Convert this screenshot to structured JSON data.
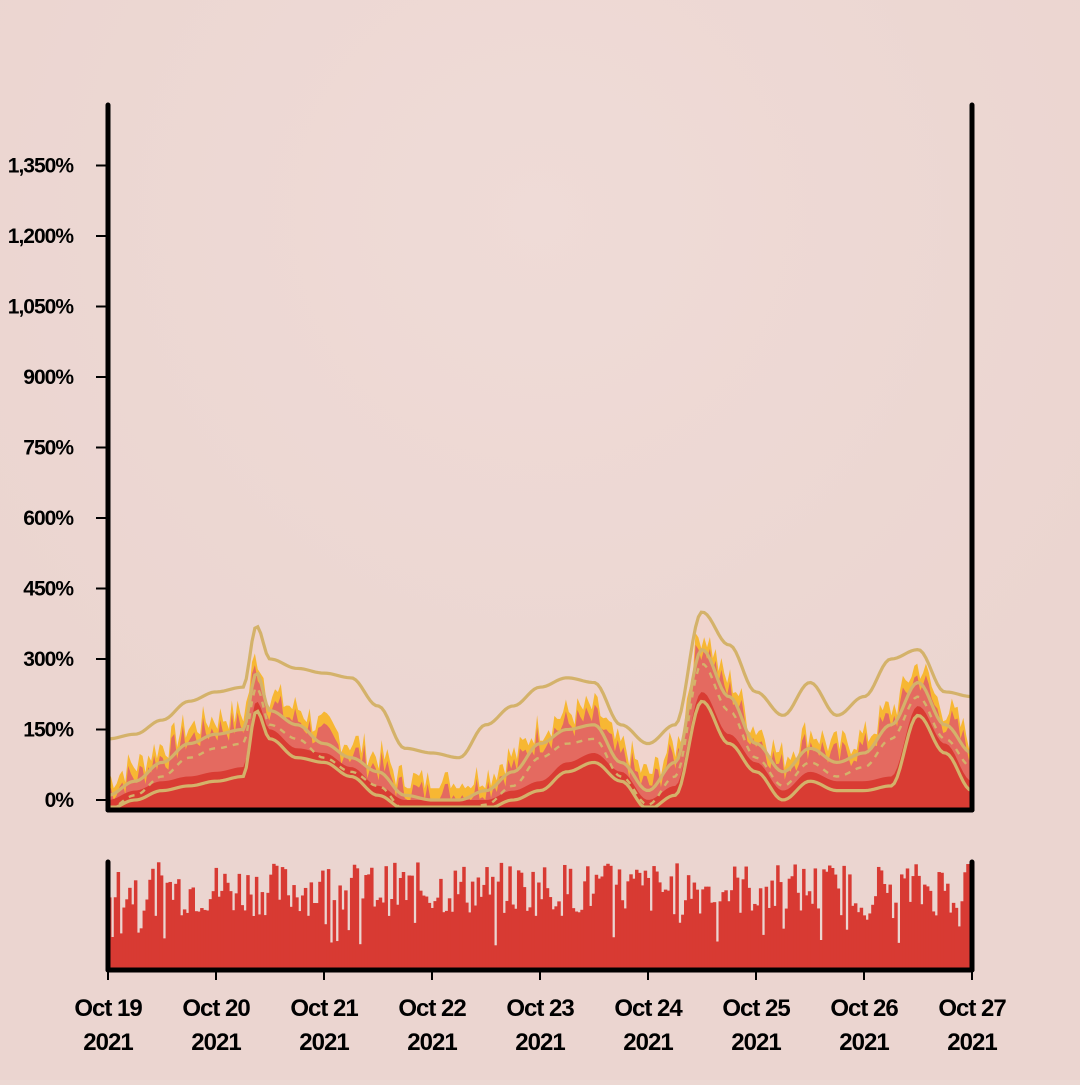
{
  "chart_data": [
    {
      "type": "area",
      "description_shown": false,
      "x_axis": {
        "type": "date",
        "range": [
          "2021-10-19",
          "2021-10-27"
        ],
        "tick_labels": [
          {
            "date": "2021-10-19",
            "line1": "Oct 19",
            "line2": "2021"
          },
          {
            "date": "2021-10-20",
            "line1": "Oct 20",
            "line2": "2021"
          },
          {
            "date": "2021-10-21",
            "line1": "Oct 21",
            "line2": "2021"
          },
          {
            "date": "2021-10-22",
            "line1": "Oct 22",
            "line2": "2021"
          },
          {
            "date": "2021-10-23",
            "line1": "Oct 23",
            "line2": "2021"
          },
          {
            "date": "2021-10-24",
            "line1": "Oct 24",
            "line2": "2021"
          },
          {
            "date": "2021-10-25",
            "line1": "Oct 25",
            "line2": "2021"
          },
          {
            "date": "2021-10-26",
            "line1": "Oct 26",
            "line2": "2021"
          },
          {
            "date": "2021-10-27",
            "line1": "Oct 27",
            "line2": "2021"
          }
        ]
      },
      "y_axis": {
        "unit": "%",
        "ylim": [
          0,
          1450
        ],
        "ticks": [
          0,
          150,
          300,
          450,
          600,
          750,
          900,
          1050,
          1200,
          1350
        ],
        "tick_labels": [
          "0%",
          "150%",
          "300%",
          "450%",
          "600%",
          "750%",
          "900%",
          "1,050%",
          "1,200%",
          "1,350%"
        ]
      },
      "grid": false,
      "series_smooth_anchors": {
        "x": [
          "2021-10-19 00:00",
          "2021-10-19 06:00",
          "2021-10-19 12:00",
          "2021-10-19 18:00",
          "2021-10-20 00:00",
          "2021-10-20 06:00",
          "2021-10-20 09:00",
          "2021-10-20 12:00",
          "2021-10-20 18:00",
          "2021-10-21 00:00",
          "2021-10-21 06:00",
          "2021-10-21 12:00",
          "2021-10-21 18:00",
          "2021-10-22 00:00",
          "2021-10-22 06:00",
          "2021-10-22 12:00",
          "2021-10-22 18:00",
          "2021-10-23 00:00",
          "2021-10-23 06:00",
          "2021-10-23 12:00",
          "2021-10-23 18:00",
          "2021-10-24 00:00",
          "2021-10-24 06:00",
          "2021-10-24 12:00",
          "2021-10-24 18:00",
          "2021-10-25 00:00",
          "2021-10-25 06:00",
          "2021-10-25 12:00",
          "2021-10-25 18:00",
          "2021-10-26 00:00",
          "2021-10-26 06:00",
          "2021-10-26 12:00",
          "2021-10-26 18:00",
          "2021-10-27 00:00"
        ],
        "lower_band": [
          0,
          20,
          40,
          50,
          60,
          70,
          210,
          150,
          110,
          100,
          70,
          30,
          0,
          0,
          0,
          0,
          20,
          40,
          80,
          100,
          60,
          0,
          30,
          230,
          140,
          80,
          20,
          60,
          40,
          40,
          50,
          200,
          120,
          40
        ],
        "core": [
          10,
          40,
          80,
          120,
          140,
          150,
          270,
          190,
          160,
          120,
          90,
          60,
          10,
          0,
          0,
          20,
          60,
          120,
          150,
          160,
          80,
          20,
          80,
          320,
          220,
          120,
          60,
          110,
          80,
          100,
          160,
          250,
          160,
          100
        ],
        "upper_band": [
          130,
          140,
          170,
          210,
          230,
          240,
          370,
          300,
          280,
          270,
          260,
          200,
          110,
          100,
          90,
          160,
          200,
          240,
          260,
          250,
          160,
          120,
          160,
          400,
          330,
          230,
          180,
          250,
          180,
          220,
          300,
          320,
          230,
          220
        ]
      },
      "series_colors": {
        "area_fill": "#d93c33",
        "band_fill": "#e46a60",
        "spike_fill": "#f7b733",
        "band_line": "#d4b26a",
        "background": "#ecd8d3",
        "volume_bars": "#d83a33"
      }
    },
    {
      "type": "bar",
      "panel": "volume",
      "note_values_are_relative": "bars show activity level as a fraction of panel height",
      "x_range": [
        "2021-10-19",
        "2021-10-27"
      ],
      "bar_count": 300,
      "values_fraction_mean": 0.75,
      "values_fraction_min": 0.2,
      "values_fraction_max": 1.0
    }
  ]
}
